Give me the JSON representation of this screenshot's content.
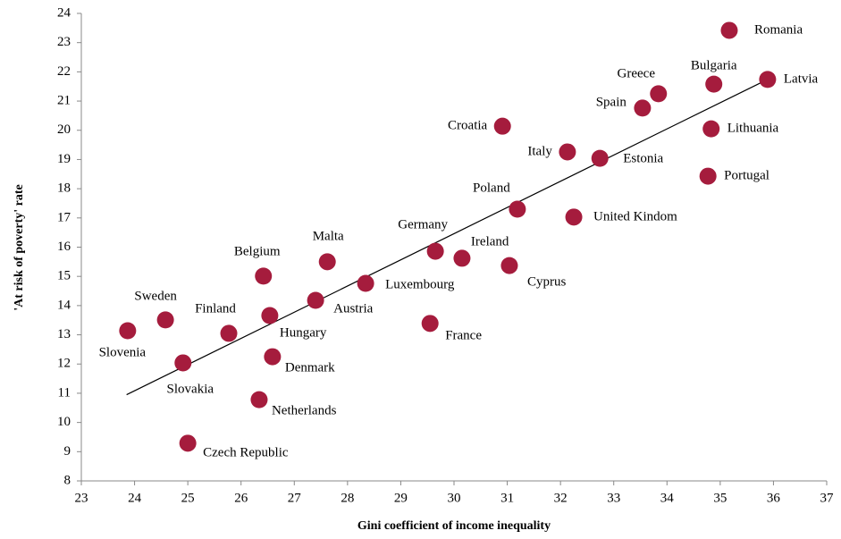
{
  "chart_data": {
    "type": "scatter",
    "x_label": "Gini coefficient of income inequality",
    "y_label": "'At risk of poverty' rate",
    "labels": [
      "Romania",
      "Latvia",
      "Bulgaria",
      "Greece",
      "Spain",
      "Lithuania",
      "Croatia",
      "Italy",
      "Estonia",
      "Portugal",
      "Poland",
      "United Kindom",
      "Germany",
      "Ireland",
      "Cyprus",
      "Malta",
      "Belgium",
      "Luxembourg",
      "Austria",
      "Hungary",
      "Sweden",
      "Finland",
      "Slovenia",
      "France",
      "Slovakia",
      "Denmark",
      "Netherlands",
      "Czech Republic"
    ],
    "x": [
      35.17,
      35.89,
      34.88,
      33.84,
      33.54,
      34.83,
      30.91,
      32.13,
      32.74,
      34.77,
      31.19,
      32.25,
      29.65,
      30.15,
      31.04,
      27.62,
      26.42,
      28.34,
      27.4,
      26.54,
      24.58,
      25.77,
      23.87,
      29.55,
      24.91,
      26.59,
      26.34,
      25.0
    ],
    "y": [
      23.42,
      21.74,
      21.58,
      21.25,
      20.76,
      20.05,
      20.14,
      19.26,
      19.04,
      18.43,
      17.3,
      17.03,
      15.86,
      15.62,
      15.37,
      15.5,
      15.01,
      14.76,
      14.18,
      13.66,
      13.51,
      13.05,
      13.14,
      13.39,
      12.04,
      12.25,
      10.78,
      9.29
    ],
    "color": "#a51c3d",
    "trendline": {
      "x": [
        23.85,
        35.9
      ],
      "y": [
        10.95,
        21.75
      ],
      "color": "#000000"
    },
    "xlim": [
      23,
      37
    ],
    "xticks": [
      23,
      24,
      25,
      26,
      27,
      28,
      29,
      30,
      31,
      32,
      33,
      34,
      35,
      36,
      37
    ],
    "ylim": [
      8,
      24
    ],
    "yticks": [
      8,
      9,
      10,
      11,
      12,
      13,
      14,
      15,
      16,
      17,
      18,
      19,
      20,
      21,
      22,
      23,
      24
    ],
    "grid": false
  }
}
